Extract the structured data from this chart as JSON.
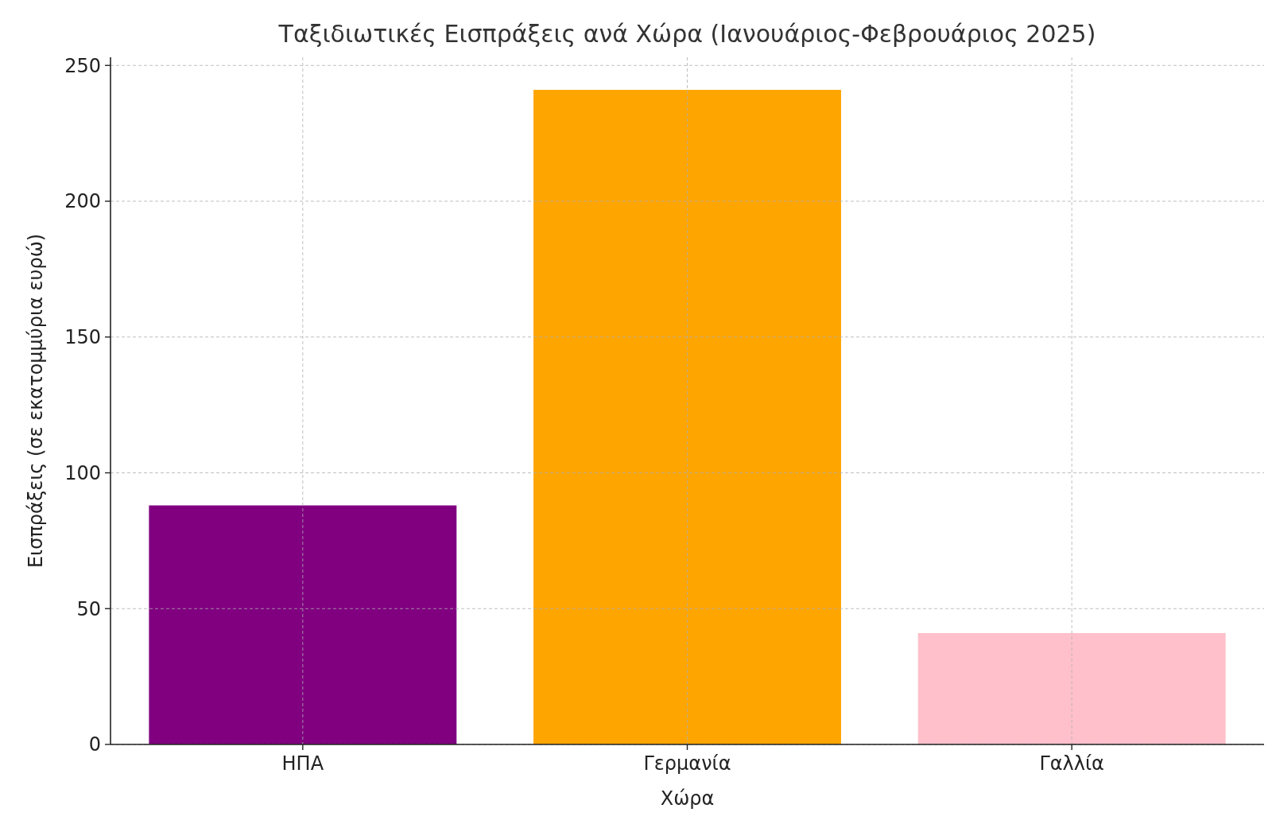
{
  "chart_data": {
    "type": "bar",
    "title": "Ταξιδιωτικές Εισπράξεις ανά Χώρα (Ιανουάριος-Φεβρουάριος 2025)",
    "xlabel": "Χώρα",
    "ylabel": "Εισπράξεις (σε εκατομμύρια ευρώ)",
    "categories": [
      "ΗΠΑ",
      "Γερμανία",
      "Γαλλία"
    ],
    "values": [
      88,
      241,
      41
    ],
    "colors": [
      "#800080",
      "#ffa500",
      "#ffc0cb"
    ],
    "ylim": [
      0,
      253
    ],
    "yticks": [
      0,
      50,
      100,
      150,
      200,
      250
    ],
    "grid": true
  }
}
